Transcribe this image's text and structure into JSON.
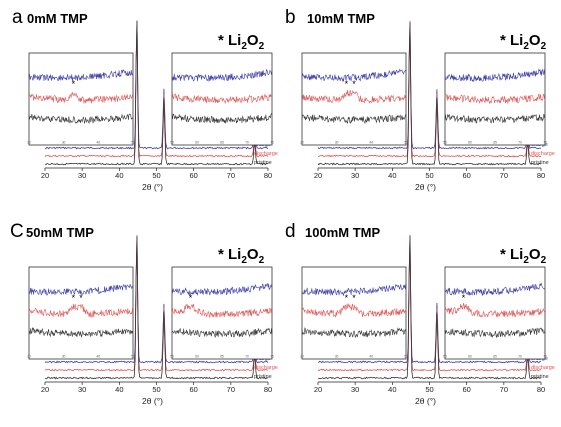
{
  "figure": {
    "species_marker": "*",
    "species_text": "Li",
    "species_sub1": "2",
    "species_mid": "O",
    "species_sub2": "2"
  },
  "chart_data": [
    {
      "type": "line",
      "panel": "a",
      "title": "0mM TMP",
      "xlabel": "2θ (°)",
      "xlim": [
        20,
        80
      ],
      "xticks": [
        20,
        30,
        40,
        50,
        60,
        70,
        80
      ],
      "legend": [
        "charge",
        "discharge",
        "pristine"
      ],
      "legend_placement": "right, beside traces",
      "series": [
        {
          "name": "charge",
          "color": "#3b3ba8",
          "peaks": [
            [
              44.7,
              1.0
            ],
            [
              52.0,
              0.45
            ],
            [
              76.4,
              0.15
            ]
          ]
        },
        {
          "name": "discharge",
          "color": "#e05656",
          "peaks": [
            [
              44.7,
              1.0
            ],
            [
              52.0,
              0.45
            ],
            [
              76.4,
              0.15
            ]
          ]
        },
        {
          "name": "pristine",
          "color": "#333333",
          "peaks": [
            [
              44.7,
              1.0
            ],
            [
              52.0,
              0.45
            ],
            [
              76.4,
              0.15
            ]
          ]
        }
      ],
      "insets": [
        {
          "xticks": [
            20,
            30,
            40,
            50
          ],
          "marked_peaks": [
            {
              "series": "discharge",
              "x": 32.8
            }
          ]
        },
        {
          "xticks": [
            55,
            60,
            65,
            70,
            75
          ],
          "marked_peaks": []
        }
      ]
    },
    {
      "type": "line",
      "panel": "b",
      "title": "10mM TMP",
      "xlabel": "2θ (°)",
      "xlim": [
        20,
        80
      ],
      "xticks": [
        20,
        30,
        40,
        50,
        60,
        70,
        80
      ],
      "legend": [
        "charge",
        "discharge",
        "pristine"
      ],
      "legend_placement": "right, beside traces",
      "series": [
        {
          "name": "charge",
          "color": "#3b3ba8",
          "peaks": [
            [
              44.7,
              1.0
            ],
            [
              52.0,
              0.45
            ],
            [
              76.4,
              0.15
            ]
          ]
        },
        {
          "name": "discharge",
          "color": "#e05656",
          "peaks": [
            [
              44.7,
              1.0
            ],
            [
              52.0,
              0.45
            ],
            [
              76.4,
              0.15
            ]
          ]
        },
        {
          "name": "pristine",
          "color": "#333333",
          "peaks": [
            [
              44.7,
              1.0
            ],
            [
              52.0,
              0.45
            ],
            [
              76.4,
              0.15
            ]
          ]
        }
      ],
      "insets": [
        {
          "xticks": [
            20,
            30,
            40,
            50
          ],
          "marked_peaks": [
            {
              "series": "discharge",
              "x": 32.8
            },
            {
              "series": "discharge",
              "x": 35.0
            }
          ]
        },
        {
          "xticks": [
            55,
            60,
            65,
            70,
            75
          ],
          "marked_peaks": []
        }
      ]
    },
    {
      "type": "line",
      "panel": "C",
      "title": "50mM TMP",
      "xlabel": "2θ (°)",
      "xlim": [
        20,
        80
      ],
      "xticks": [
        20,
        30,
        40,
        50,
        60,
        70,
        80
      ],
      "legend": [
        "charge",
        "discharge",
        "pristine"
      ],
      "legend_placement": "right, beside traces",
      "series": [
        {
          "name": "charge",
          "color": "#3b3ba8",
          "peaks": [
            [
              44.7,
              1.0
            ],
            [
              52.0,
              0.45
            ],
            [
              76.4,
              0.15
            ]
          ]
        },
        {
          "name": "discharge",
          "color": "#e05656",
          "peaks": [
            [
              44.7,
              1.0
            ],
            [
              52.0,
              0.45
            ],
            [
              76.4,
              0.15
            ]
          ]
        },
        {
          "name": "pristine",
          "color": "#333333",
          "peaks": [
            [
              44.7,
              1.0
            ],
            [
              52.0,
              0.45
            ],
            [
              76.4,
              0.15
            ]
          ]
        }
      ],
      "insets": [
        {
          "xticks": [
            20,
            30,
            40,
            50
          ],
          "marked_peaks": [
            {
              "series": "discharge",
              "x": 32.8
            },
            {
              "series": "discharge",
              "x": 35.0
            }
          ]
        },
        {
          "xticks": [
            55,
            60,
            65,
            70,
            75
          ],
          "marked_peaks": [
            {
              "series": "discharge",
              "x": 58.7
            }
          ]
        }
      ]
    },
    {
      "type": "line",
      "panel": "d",
      "title": "100mM TMP",
      "xlabel": "2θ (°)",
      "xlim": [
        20,
        80
      ],
      "xticks": [
        20,
        30,
        40,
        50,
        60,
        70,
        80
      ],
      "legend": [
        "charge",
        "discharge",
        "pristine"
      ],
      "legend_placement": "right, beside traces",
      "series": [
        {
          "name": "charge",
          "color": "#3b3ba8",
          "peaks": [
            [
              44.7,
              1.0
            ],
            [
              52.0,
              0.45
            ],
            [
              76.4,
              0.15
            ]
          ]
        },
        {
          "name": "discharge",
          "color": "#e05656",
          "peaks": [
            [
              44.7,
              1.0
            ],
            [
              52.0,
              0.45
            ],
            [
              76.4,
              0.15
            ]
          ]
        },
        {
          "name": "pristine",
          "color": "#333333",
          "peaks": [
            [
              44.7,
              1.0
            ],
            [
              52.0,
              0.45
            ],
            [
              76.4,
              0.15
            ]
          ]
        }
      ],
      "insets": [
        {
          "xticks": [
            20,
            30,
            40,
            50
          ],
          "marked_peaks": [
            {
              "series": "discharge",
              "x": 32.8
            },
            {
              "series": "discharge",
              "x": 35.0
            }
          ]
        },
        {
          "xticks": [
            55,
            60,
            65,
            70,
            75
          ],
          "marked_peaks": [
            {
              "series": "discharge",
              "x": 58.7
            }
          ]
        }
      ]
    }
  ]
}
